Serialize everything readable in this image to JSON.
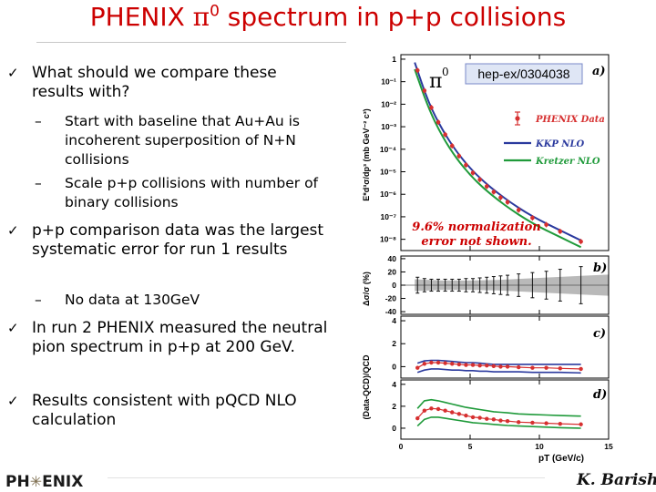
{
  "slide": {
    "title_prefix": "PHENIX ",
    "title_pi": "π",
    "title_sup": "0",
    "title_rest": " spectrum in p+p collisions"
  },
  "bullets": [
    {
      "text": "What should we compare these results with?"
    },
    {
      "text": "p+p comparison data was the largest systematic error for run 1 results"
    },
    {
      "text": "In run 2 PHENIX measured the neutral pion spectrum in p+p at 200 GeV."
    },
    {
      "text": "Results consistent with pQCD NLO calculation"
    }
  ],
  "subbullets": [
    {
      "dash": "–",
      "text": "Start with baseline that Au+Au is incoherent superposition of N+N collisions"
    },
    {
      "dash": "–",
      "text": "Scale p+p collisions with number of binary collisions"
    },
    {
      "dash": "–",
      "text": "No data at 130GeV"
    }
  ],
  "footer": {
    "logo_left": "PH",
    "logo_star": "✳",
    "logo_right": "ENIX",
    "author": "K. Barish"
  },
  "figure": {
    "pi_label": "π",
    "pi_sup": "0",
    "ref_label": "hep-ex/0304038",
    "norm_note_line1": "9.6% normalization",
    "norm_note_line2": "error not shown.",
    "panel_a": "a)",
    "panel_b": "b)",
    "panel_c": "c)",
    "panel_d": "d)",
    "ylabel_a": "E*d³σ/dp³ (mb GeV⁻² c³)",
    "ylabel_b": "Δσ/σ (%)",
    "ylabel_cd": "(Data-QCD)/QCD",
    "xlabel": "pT (GeV/c)",
    "legend": {
      "data": "PHENIX Data",
      "kkp": "KKP NLO",
      "kretzer": "Kretzer NLO"
    },
    "colors": {
      "data": "#d63030",
      "kkp": "#2b3a9e",
      "kretzer": "#1f9a3a"
    }
  },
  "chart_data": [
    {
      "type": "scatter",
      "panel": "a)",
      "xlim": [
        0,
        15
      ],
      "ylog": true,
      "ytick_labels": [
        "1",
        "10⁻¹",
        "10⁻²",
        "10⁻³",
        "10⁻⁴",
        "10⁻⁵",
        "10⁻⁶",
        "10⁻⁷",
        "10⁻⁸"
      ],
      "xtick_labels": [
        "0",
        "5",
        "10",
        "15"
      ],
      "series": [
        {
          "name": "PHENIX Data",
          "x": [
            1.2,
            1.7,
            2.2,
            2.7,
            3.2,
            3.7,
            4.2,
            4.7,
            5.2,
            5.7,
            6.2,
            6.7,
            7.2,
            7.7,
            8.5,
            9.5,
            10.5,
            11.5,
            13.0
          ],
          "y_log10": [
            -0.5,
            -1.4,
            -2.15,
            -2.8,
            -3.35,
            -3.85,
            -4.3,
            -4.7,
            -5.05,
            -5.35,
            -5.65,
            -5.9,
            -6.15,
            -6.35,
            -6.7,
            -7.05,
            -7.35,
            -7.65,
            -8.1
          ]
        },
        {
          "name": "KKP NLO",
          "x": [
            1,
            2,
            3,
            4,
            5,
            6,
            7,
            8,
            9,
            10,
            11,
            12,
            13
          ],
          "y_log10": [
            -0.15,
            -1.95,
            -3.15,
            -4.1,
            -4.85,
            -5.45,
            -5.95,
            -6.4,
            -6.8,
            -7.15,
            -7.45,
            -7.75,
            -8.05
          ]
        },
        {
          "name": "Kretzer NLO",
          "x": [
            1,
            2,
            3,
            4,
            5,
            6,
            7,
            8,
            9,
            10,
            11,
            12,
            13
          ],
          "y_log10": [
            -0.45,
            -2.2,
            -3.45,
            -4.4,
            -5.15,
            -5.75,
            -6.25,
            -6.7,
            -7.1,
            -7.45,
            -7.75,
            -8.05,
            -8.35
          ]
        }
      ]
    },
    {
      "type": "bar",
      "panel": "b)",
      "xlim": [
        0,
        15
      ],
      "ylim": [
        -40,
        40
      ],
      "ytick_labels": [
        "40",
        "20",
        "0",
        "-20",
        "-40"
      ],
      "x": [
        1.2,
        1.7,
        2.2,
        2.7,
        3.2,
        3.7,
        4.2,
        4.7,
        5.2,
        5.7,
        6.2,
        6.7,
        7.2,
        7.7,
        8.5,
        9.5,
        10.5,
        11.5,
        13.0
      ],
      "errors_pct": [
        12,
        10,
        9,
        9,
        9,
        9,
        9,
        10,
        10,
        11,
        12,
        13,
        14,
        15,
        17,
        19,
        21,
        24,
        28
      ],
      "band_pct": [
        [
          1,
          11
        ],
        [
          5,
          10
        ],
        [
          10,
          13
        ],
        [
          13,
          18
        ]
      ]
    },
    {
      "type": "line",
      "panel": "c)",
      "xlim": [
        0,
        15
      ],
      "ylim": [
        -1,
        4
      ],
      "ytick_labels": [
        "4",
        "2",
        "0"
      ],
      "x": [
        1.2,
        1.7,
        2.2,
        2.7,
        3.2,
        3.7,
        4.2,
        4.7,
        5.2,
        5.7,
        6.2,
        6.7,
        7.2,
        7.7,
        8.5,
        9.5,
        10.5,
        11.5,
        13.0
      ],
      "series": [
        {
          "name": "PHENIX Data",
          "values": [
            -0.1,
            0.25,
            0.35,
            0.35,
            0.3,
            0.25,
            0.2,
            0.15,
            0.15,
            0.1,
            0.1,
            0.05,
            0.0,
            0.0,
            -0.05,
            -0.1,
            -0.1,
            -0.15,
            -0.2
          ]
        },
        {
          "name": "upper",
          "values": [
            0.3,
            0.5,
            0.55,
            0.55,
            0.5,
            0.45,
            0.4,
            0.35,
            0.35,
            0.3,
            0.25,
            0.2,
            0.2,
            0.2,
            0.2,
            0.2,
            0.2,
            0.2,
            0.2
          ]
        },
        {
          "name": "lower",
          "values": [
            -0.5,
            -0.3,
            -0.2,
            -0.2,
            -0.25,
            -0.3,
            -0.3,
            -0.35,
            -0.35,
            -0.4,
            -0.4,
            -0.45,
            -0.45,
            -0.45,
            -0.45,
            -0.5,
            -0.5,
            -0.5,
            -0.55
          ]
        }
      ]
    },
    {
      "type": "line",
      "panel": "d)",
      "xlim": [
        0,
        15
      ],
      "ylim": [
        -1,
        4
      ],
      "ytick_labels": [
        "4",
        "2",
        "0"
      ],
      "xtick_labels": [
        "0",
        "5",
        "10",
        "15"
      ],
      "x": [
        1.2,
        1.7,
        2.2,
        2.7,
        3.2,
        3.7,
        4.2,
        4.7,
        5.2,
        5.7,
        6.2,
        6.7,
        7.2,
        7.7,
        8.5,
        9.5,
        10.5,
        11.5,
        13.0
      ],
      "series": [
        {
          "name": "PHENIX Data",
          "values": [
            0.9,
            1.6,
            1.8,
            1.75,
            1.6,
            1.45,
            1.3,
            1.15,
            1.0,
            0.95,
            0.85,
            0.8,
            0.7,
            0.65,
            0.55,
            0.5,
            0.45,
            0.4,
            0.35
          ]
        },
        {
          "name": "upper",
          "values": [
            1.8,
            2.5,
            2.6,
            2.5,
            2.35,
            2.2,
            2.05,
            1.9,
            1.8,
            1.7,
            1.6,
            1.5,
            1.45,
            1.4,
            1.3,
            1.25,
            1.2,
            1.15,
            1.1
          ]
        },
        {
          "name": "lower",
          "values": [
            0.2,
            0.8,
            1.0,
            1.0,
            0.9,
            0.8,
            0.7,
            0.6,
            0.5,
            0.45,
            0.4,
            0.35,
            0.3,
            0.25,
            0.2,
            0.15,
            0.1,
            0.05,
            0.0
          ]
        }
      ]
    }
  ]
}
